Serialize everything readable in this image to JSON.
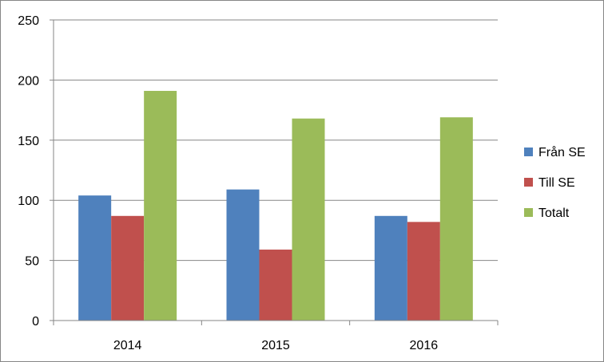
{
  "chart_data": {
    "type": "bar",
    "categories": [
      "2014",
      "2015",
      "2016"
    ],
    "series": [
      {
        "name": "Från SE",
        "color": "#4F81BD",
        "values": [
          104,
          109,
          87
        ]
      },
      {
        "name": "Till SE",
        "color": "#C0504D",
        "values": [
          87,
          59,
          82
        ]
      },
      {
        "name": "Totalt",
        "color": "#9BBB59",
        "values": [
          191,
          168,
          169
        ]
      }
    ],
    "ylim": [
      0,
      250
    ],
    "yticks": [
      0,
      50,
      100,
      150,
      200,
      250
    ],
    "grid": true,
    "legend": "right",
    "title": "",
    "xlabel": "",
    "ylabel": ""
  }
}
